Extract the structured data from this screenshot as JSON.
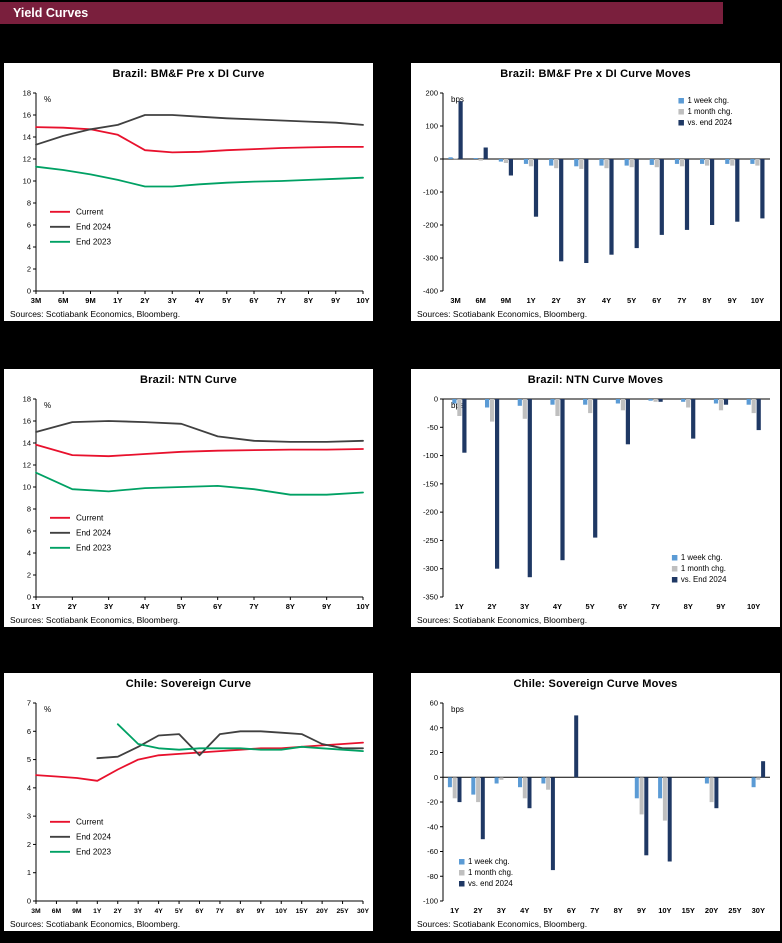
{
  "header": {
    "title": "Yield Curves",
    "accent": "#7a1f3d"
  },
  "palette": {
    "current": "#e8112d",
    "end2024": "#404040",
    "end2023": "#00a164",
    "week": "#5b9bd5",
    "month": "#bfbfbf",
    "vs2024": "#1f3864"
  },
  "charts": [
    {
      "title": "Brazil: BM&F Pre x DI Curve",
      "sources": "Sources: Scotiabank Economics, Bloomberg.",
      "chart_data": {
        "type": "line",
        "ylabel": "%",
        "ylim": [
          0,
          18
        ],
        "yticks": [
          0,
          2,
          4,
          6,
          8,
          10,
          12,
          14,
          16,
          18
        ],
        "categories": [
          "3M",
          "6M",
          "9M",
          "1Y",
          "2Y",
          "3Y",
          "4Y",
          "5Y",
          "6Y",
          "7Y",
          "8Y",
          "9Y",
          "10Y"
        ],
        "legend_pos": "mid-left",
        "series": [
          {
            "name": "Current",
            "color": "#e8112d",
            "values": [
              14.9,
              14.85,
              14.7,
              14.2,
              12.8,
              12.6,
              12.65,
              12.8,
              12.9,
              13.0,
              13.05,
              13.1,
              13.1
            ]
          },
          {
            "name": "End 2024",
            "color": "#404040",
            "values": [
              13.3,
              14.1,
              14.7,
              15.1,
              16.0,
              16.0,
              15.85,
              15.7,
              15.6,
              15.5,
              15.4,
              15.3,
              15.1
            ]
          },
          {
            "name": "End 2023",
            "color": "#00a164",
            "values": [
              11.3,
              11.0,
              10.6,
              10.1,
              9.5,
              9.5,
              9.7,
              9.85,
              9.95,
              10.0,
              10.1,
              10.2,
              10.3
            ]
          }
        ]
      }
    },
    {
      "title": "Brazil: BM&F Pre x DI Curve Moves",
      "sources": "Sources: Scotiabank Economics, Bloomberg.",
      "chart_data": {
        "type": "bar",
        "ylabel": "bps",
        "ylim": [
          -400,
          200
        ],
        "yticks": [
          200,
          100,
          0,
          -100,
          -200,
          -300,
          -400
        ],
        "categories": [
          "3M",
          "6M",
          "9M",
          "1Y",
          "2Y",
          "3Y",
          "4Y",
          "5Y",
          "6Y",
          "7Y",
          "8Y",
          "9Y",
          "10Y"
        ],
        "legend_pos": "top-right",
        "series": [
          {
            "name": "1 week chg.",
            "color": "#5b9bd5",
            "values": [
              5,
              3,
              -8,
              -15,
              -20,
              -22,
              -20,
              -20,
              -18,
              -15,
              -15,
              -15,
              -15
            ]
          },
          {
            "name": "1 month chg.",
            "color": "#bfbfbf",
            "values": [
              2,
              -5,
              -12,
              -22,
              -28,
              -30,
              -28,
              -25,
              -25,
              -22,
              -20,
              -20,
              -20
            ]
          },
          {
            "name": "vs. end 2024",
            "color": "#1f3864",
            "values": [
              175,
              35,
              -50,
              -175,
              -310,
              -315,
              -290,
              -270,
              -230,
              -215,
              -200,
              -190,
              -180
            ]
          }
        ]
      }
    },
    {
      "title": "Brazil: NTN Curve",
      "sources": "Sources: Scotiabank Economics, Bloomberg.",
      "chart_data": {
        "type": "line",
        "ylabel": "%",
        "ylim": [
          0,
          18
        ],
        "yticks": [
          0,
          2,
          4,
          6,
          8,
          10,
          12,
          14,
          16,
          18
        ],
        "categories": [
          "1Y",
          "2Y",
          "3Y",
          "4Y",
          "5Y",
          "6Y",
          "7Y",
          "8Y",
          "9Y",
          "10Y"
        ],
        "legend_pos": "mid-left",
        "series": [
          {
            "name": "Current",
            "color": "#e8112d",
            "values": [
              13.85,
              12.9,
              12.8,
              13.0,
              13.2,
              13.3,
              13.35,
              13.4,
              13.4,
              13.45
            ]
          },
          {
            "name": "End 2024",
            "color": "#404040",
            "values": [
              15.0,
              15.9,
              16.0,
              15.9,
              15.75,
              14.6,
              14.2,
              14.1,
              14.1,
              14.2
            ]
          },
          {
            "name": "End 2023",
            "color": "#00a164",
            "values": [
              11.3,
              9.8,
              9.6,
              9.9,
              10.0,
              10.1,
              9.8,
              9.3,
              9.3,
              9.5
            ]
          }
        ]
      }
    },
    {
      "title": "Brazil: NTN Curve Moves",
      "sources": "Sources: Scotiabank Economics, Bloomberg.",
      "chart_data": {
        "type": "bar",
        "ylabel": "bps",
        "ylim": [
          -350,
          0
        ],
        "yticks": [
          0,
          -50,
          -100,
          -150,
          -200,
          -250,
          -300,
          -350
        ],
        "categories": [
          "1Y",
          "2Y",
          "3Y",
          "4Y",
          "5Y",
          "6Y",
          "7Y",
          "8Y",
          "9Y",
          "10Y"
        ],
        "legend_pos": "bottom-right",
        "series": [
          {
            "name": "1 week chg.",
            "color": "#5b9bd5",
            "values": [
              -8,
              -15,
              -12,
              -10,
              -10,
              -8,
              -3,
              -5,
              -8,
              -10
            ]
          },
          {
            "name": "1 month chg.",
            "color": "#bfbfbf",
            "values": [
              -30,
              -40,
              -35,
              -30,
              -25,
              -20,
              -5,
              -15,
              -20,
              -25
            ]
          },
          {
            "name": "vs. End 2024",
            "color": "#1f3864",
            "values": [
              -95,
              -300,
              -315,
              -285,
              -245,
              -80,
              -5,
              -70,
              -10,
              -55
            ]
          }
        ]
      }
    },
    {
      "title": "Chile: Sovereign Curve",
      "sources": "Sources: Scotiabank Economics, Bloomberg.",
      "chart_data": {
        "type": "line",
        "ylabel": "%",
        "ylim": [
          0,
          7
        ],
        "yticks": [
          0,
          1,
          2,
          3,
          4,
          5,
          6,
          7
        ],
        "categories": [
          "3M",
          "6M",
          "9M",
          "1Y",
          "2Y",
          "3Y",
          "4Y",
          "5Y",
          "6Y",
          "7Y",
          "8Y",
          "9Y",
          "10Y",
          "15Y",
          "20Y",
          "25Y",
          "30Y"
        ],
        "legend_pos": "mid-left",
        "series": [
          {
            "name": "Current",
            "color": "#e8112d",
            "values": [
              4.45,
              4.4,
              4.35,
              4.25,
              4.65,
              5.0,
              5.15,
              5.2,
              5.25,
              5.3,
              5.35,
              5.4,
              5.4,
              5.45,
              5.5,
              5.55,
              5.6
            ]
          },
          {
            "name": "End 2024",
            "color": "#404040",
            "values": [
              null,
              null,
              null,
              5.05,
              5.1,
              5.45,
              5.85,
              5.9,
              5.15,
              5.9,
              6.0,
              6.0,
              5.95,
              5.9,
              5.55,
              5.4,
              5.4
            ]
          },
          {
            "name": "End 2023",
            "color": "#00a164",
            "values": [
              null,
              null,
              null,
              null,
              6.25,
              5.55,
              5.4,
              5.35,
              5.4,
              5.4,
              5.4,
              5.35,
              5.35,
              5.45,
              5.4,
              5.35,
              5.3
            ]
          }
        ]
      }
    },
    {
      "title": "Chile: Sovereign Curve Moves",
      "sources": "Sources: Scotiabank Economics, Bloomberg.",
      "chart_data": {
        "type": "bar",
        "ylabel": "bps",
        "ylim": [
          -100,
          60
        ],
        "yticks": [
          60,
          40,
          20,
          0,
          -20,
          -40,
          -60,
          -80,
          -100
        ],
        "categories": [
          "1Y",
          "2Y",
          "3Y",
          "4Y",
          "5Y",
          "6Y",
          "7Y",
          "8Y",
          "9Y",
          "10Y",
          "15Y",
          "20Y",
          "25Y",
          "30Y"
        ],
        "legend_pos": "bottom-left",
        "series": [
          {
            "name": "1 week chg.",
            "color": "#5b9bd5",
            "values": [
              -8,
              -14,
              -5,
              -8,
              -5,
              0,
              0,
              0,
              -17,
              -17,
              0,
              -5,
              0,
              -8
            ]
          },
          {
            "name": "1 month chg.",
            "color": "#bfbfbf",
            "values": [
              -17,
              -20,
              -2,
              -17,
              -10,
              0,
              0,
              0,
              -30,
              -35,
              0,
              -20,
              0,
              -2
            ]
          },
          {
            "name": "vs. end 2024",
            "color": "#1f3864",
            "values": [
              -20,
              -50,
              0,
              -25,
              -75,
              50,
              0,
              0,
              -63,
              -68,
              0,
              -25,
              0,
              13
            ]
          }
        ]
      }
    }
  ]
}
